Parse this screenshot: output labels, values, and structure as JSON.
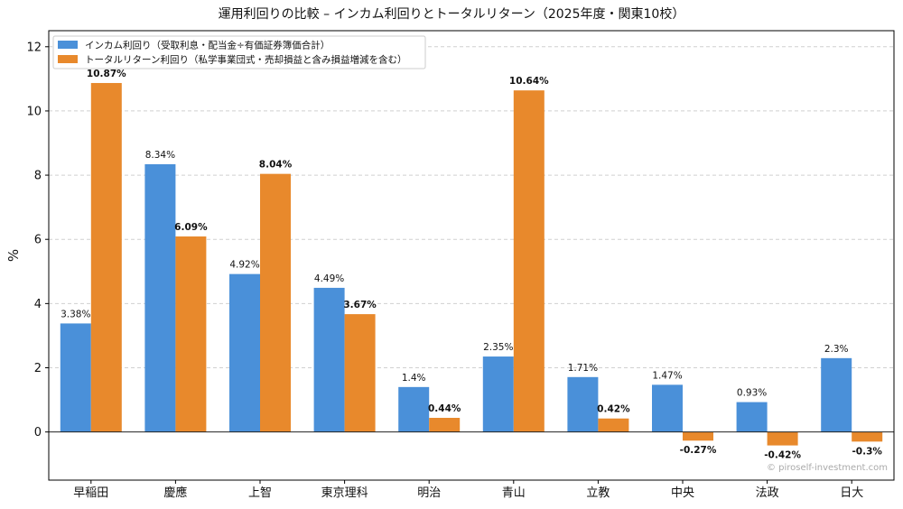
{
  "chart_data": {
    "type": "bar",
    "title": "運用利回りの比較 – インカム利回りとトータルリターン（2025年度・関東10校）",
    "ylabel": "%",
    "xlabel": "",
    "ylim": [
      -1.5,
      12.5
    ],
    "yticks": [
      0,
      2,
      4,
      6,
      8,
      10,
      12
    ],
    "grid": true,
    "legend_position": "top-left",
    "categories": [
      "早稲田",
      "慶應",
      "上智",
      "東京理科",
      "明治",
      "青山",
      "立教",
      "中央",
      "法政",
      "日大"
    ],
    "series": [
      {
        "name": "インカム利回り（受取利息・配当金÷有価証券簿価合計）",
        "color": "#4a90d9",
        "values": [
          3.38,
          8.34,
          4.92,
          4.49,
          1.4,
          2.35,
          1.71,
          1.47,
          0.93,
          2.3
        ],
        "labels": [
          "3.38%",
          "8.34%",
          "4.92%",
          "4.49%",
          "1.4%",
          "2.35%",
          "1.71%",
          "1.47%",
          "0.93%",
          "2.3%"
        ],
        "label_bold": false
      },
      {
        "name": "トータルリターン利回り（私学事業団式・売却損益と含み損益増減を含む）",
        "color": "#e8892c",
        "values": [
          10.87,
          6.09,
          8.04,
          3.67,
          0.44,
          10.64,
          0.42,
          -0.27,
          -0.42,
          -0.3
        ],
        "labels": [
          "10.87%",
          "6.09%",
          "8.04%",
          "3.67%",
          "0.44%",
          "10.64%",
          "0.42%",
          "-0.27%",
          "-0.42%",
          "-0.3%"
        ],
        "label_bold": true
      }
    ],
    "watermark": "© piroself-investment.com"
  }
}
